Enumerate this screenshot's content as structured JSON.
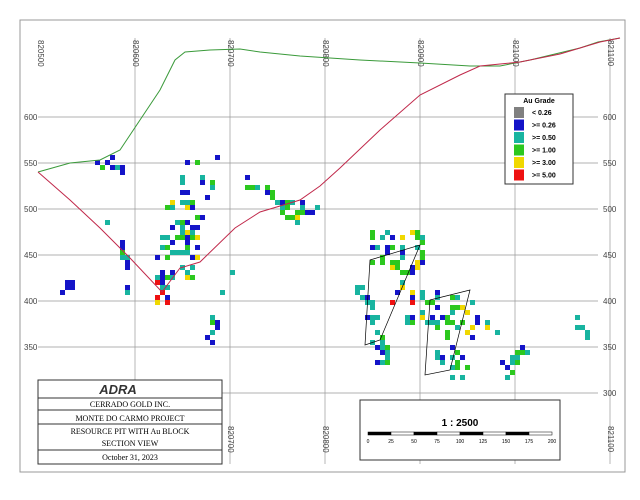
{
  "section": {
    "eastings": [
      "820500",
      "820600",
      "820700",
      "820800",
      "820900",
      "821000",
      "821100"
    ],
    "elevations": [
      600,
      550,
      500,
      450,
      400,
      350,
      300
    ],
    "legend": {
      "title": "Au Grade",
      "items": [
        {
          "label": "<  0.26",
          "color": "#808080"
        },
        {
          "label": ">= 0.26",
          "color": "#1414c8"
        },
        {
          "label": ">= 0.50",
          "color": "#18b4a0"
        },
        {
          "label": ">= 1.00",
          "color": "#2cc81e"
        },
        {
          "label": ">= 3.00",
          "color": "#f0d800"
        },
        {
          "label": ">= 5.00",
          "color": "#ee1111"
        }
      ]
    },
    "title_block": {
      "logo": "ADRA",
      "company": "CERRADO GOLD INC.",
      "project": "MONTE DO CARMO PROJECT",
      "subject": "RESOURCE PIT WITH Au BLOCK",
      "view": "SECTION VIEW",
      "date": "October 31, 2023"
    },
    "scale": {
      "label": "1 : 2500",
      "ticks": [
        0,
        25,
        50,
        75,
        100,
        125,
        150,
        175,
        200
      ]
    }
  }
}
